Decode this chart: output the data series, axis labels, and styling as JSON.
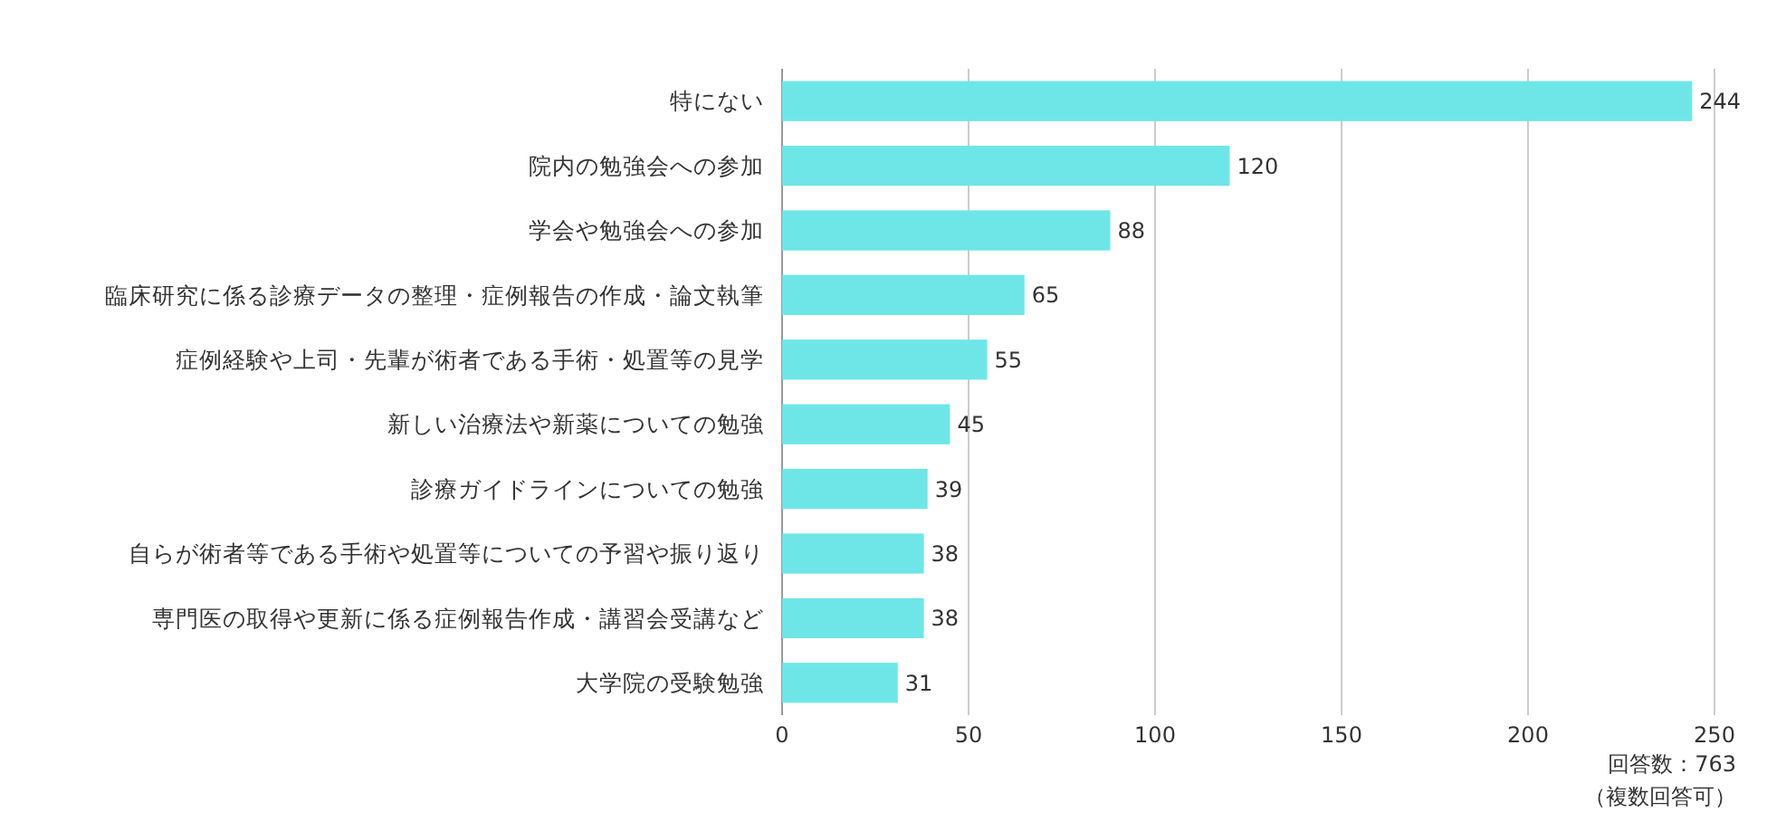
{
  "chart_data": {
    "type": "bar",
    "orientation": "horizontal",
    "categories": [
      "特にない",
      "院内の勉強会への参加",
      "学会や勉強会への参加",
      "臨床研究に係る診療データの整理・症例報告の作成・論文執筆",
      "症例経験や上司・先輩が術者である手術・処置等の見学",
      "新しい治療法や新薬についての勉強",
      "診療ガイドラインについての勉強",
      "自らが術者等である手術や処置等についての予習や振り返り",
      "専門医の取得や更新に係る症例報告作成・講習会受講など",
      "大学院の受験勉強"
    ],
    "values": [
      244,
      120,
      88,
      65,
      55,
      45,
      39,
      38,
      38,
      31
    ],
    "color": "#6ee6e8",
    "data_labels": true,
    "xlim": [
      0,
      250
    ],
    "xticks": [
      0,
      50,
      100,
      150,
      200,
      250
    ],
    "grid": "x",
    "annotations": [
      "回答数：763",
      "（複数回答可）"
    ]
  }
}
